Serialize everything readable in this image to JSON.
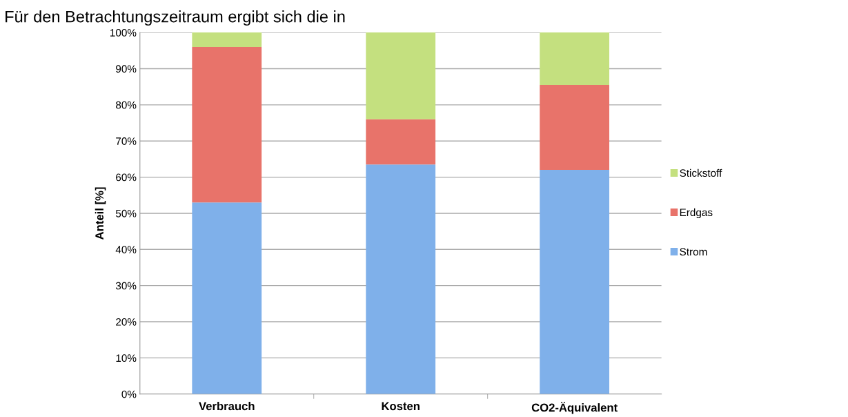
{
  "chart_data": {
    "type": "bar",
    "stacked": true,
    "categories": [
      "Verbrauch",
      "Kosten",
      "CO2-Äquivalent"
    ],
    "series": [
      {
        "name": "Strom",
        "color": "#7fb0ea",
        "values": [
          53,
          63.5,
          62
        ]
      },
      {
        "name": "Erdgas",
        "color": "#e8736a",
        "values": [
          43,
          12.5,
          23.5
        ]
      },
      {
        "name": "Stickstoff",
        "color": "#c4e07f",
        "values": [
          4,
          24,
          14.5
        ]
      }
    ],
    "ylabel": "Anteil [%]",
    "ylim": [
      0,
      100
    ],
    "yticks": [
      {
        "value": 0,
        "label": "0%"
      },
      {
        "value": 10,
        "label": "10%"
      },
      {
        "value": 20,
        "label": "20%"
      },
      {
        "value": 30,
        "label": "30%"
      },
      {
        "value": 40,
        "label": "40%"
      },
      {
        "value": 50,
        "label": "50%"
      },
      {
        "value": 60,
        "label": "60%"
      },
      {
        "value": 70,
        "label": "70%"
      },
      {
        "value": 80,
        "label": "80%"
      },
      {
        "value": 90,
        "label": "90%"
      },
      {
        "value": 100,
        "label": "100%"
      }
    ],
    "grid": "y",
    "legend": "right",
    "annotations": [
      "Für den Betrachtungszeitraum ergibt sich die in"
    ]
  }
}
